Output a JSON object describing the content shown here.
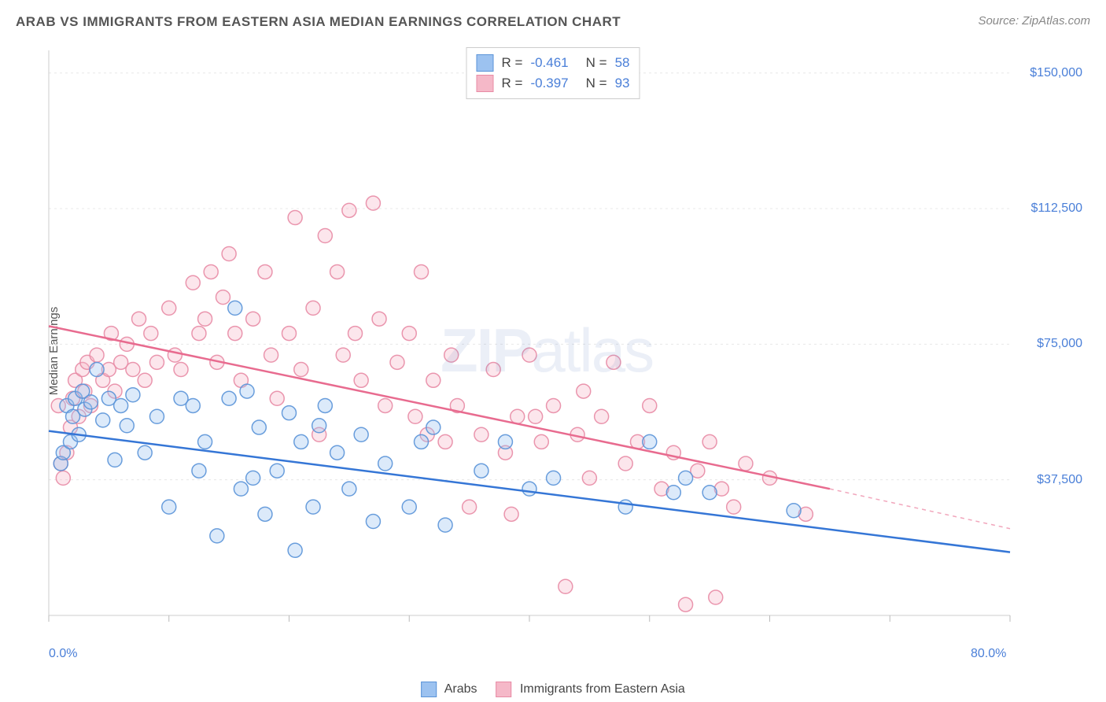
{
  "header": {
    "title": "ARAB VS IMMIGRANTS FROM EASTERN ASIA MEDIAN EARNINGS CORRELATION CHART",
    "source": "Source: ZipAtlas.com"
  },
  "watermark": {
    "bold": "ZIP",
    "light": "atlas"
  },
  "chart": {
    "type": "scatter",
    "y_axis_label": "Median Earnings",
    "xlim": [
      0,
      80
    ],
    "ylim": [
      0,
      156250
    ],
    "x_ticks_visible": [
      0,
      10,
      20,
      30,
      40,
      50,
      60,
      70,
      80
    ],
    "x_tick_labels": {
      "0": "0.0%",
      "80": "80.0%"
    },
    "y_ticks": [
      37500,
      75000,
      112500,
      150000
    ],
    "y_tick_labels": [
      "$37,500",
      "$75,000",
      "$112,500",
      "$150,000"
    ],
    "grid_color": "#e8e8e8",
    "axis_color": "#cccccc",
    "tick_color": "#bbbbbb",
    "background_color": "#ffffff",
    "label_color": "#4a7fd8",
    "marker_radius": 9,
    "marker_opacity_fill": 0.35,
    "marker_opacity_stroke": 0.9,
    "series": [
      {
        "name": "Arabs",
        "color_fill": "#9cc2f0",
        "color_stroke": "#5a93d8",
        "trend_color": "#3576d6",
        "R": "-0.461",
        "N": "58",
        "trend": {
          "x1": 0,
          "y1": 51000,
          "x2": 80,
          "y2": 17500,
          "dash_from_x": 80
        },
        "points": [
          [
            1.0,
            42000
          ],
          [
            1.2,
            45000
          ],
          [
            1.5,
            58000
          ],
          [
            1.8,
            48000
          ],
          [
            2.0,
            55000
          ],
          [
            2.2,
            60000
          ],
          [
            2.5,
            50000
          ],
          [
            2.8,
            62000
          ],
          [
            3.0,
            57000
          ],
          [
            3.5,
            59000
          ],
          [
            4.0,
            68000
          ],
          [
            4.5,
            54000
          ],
          [
            5.0,
            60000
          ],
          [
            5.5,
            43000
          ],
          [
            6.0,
            58000
          ],
          [
            6.5,
            52500
          ],
          [
            7.0,
            61000
          ],
          [
            8.0,
            45000
          ],
          [
            9.0,
            55000
          ],
          [
            10.0,
            30000
          ],
          [
            11.0,
            60000
          ],
          [
            12.0,
            58000
          ],
          [
            12.5,
            40000
          ],
          [
            13.0,
            48000
          ],
          [
            14.0,
            22000
          ],
          [
            15.0,
            60000
          ],
          [
            15.5,
            85000
          ],
          [
            16.0,
            35000
          ],
          [
            16.5,
            62000
          ],
          [
            17.0,
            38000
          ],
          [
            17.5,
            52000
          ],
          [
            18.0,
            28000
          ],
          [
            19.0,
            40000
          ],
          [
            20.0,
            56000
          ],
          [
            20.5,
            18000
          ],
          [
            21.0,
            48000
          ],
          [
            22.0,
            30000
          ],
          [
            22.5,
            52500
          ],
          [
            23.0,
            58000
          ],
          [
            24.0,
            45000
          ],
          [
            25.0,
            35000
          ],
          [
            26.0,
            50000
          ],
          [
            27.0,
            26000
          ],
          [
            28.0,
            42000
          ],
          [
            30.0,
            30000
          ],
          [
            31.0,
            48000
          ],
          [
            32.0,
            52000
          ],
          [
            33.0,
            25000
          ],
          [
            36.0,
            40000
          ],
          [
            38.0,
            48000
          ],
          [
            40.0,
            35000
          ],
          [
            42.0,
            38000
          ],
          [
            48.0,
            30000
          ],
          [
            50.0,
            48000
          ],
          [
            52.0,
            34000
          ],
          [
            53.0,
            38000
          ],
          [
            55.0,
            34000
          ],
          [
            62.0,
            29000
          ]
        ]
      },
      {
        "name": "Immigrants from Eastern Asia",
        "color_fill": "#f5b8c8",
        "color_stroke": "#e88ba5",
        "trend_color": "#e86b8f",
        "R": "-0.397",
        "N": "93",
        "trend": {
          "x1": 0,
          "y1": 80000,
          "x2": 65,
          "y2": 35000,
          "dash_from_x": 65,
          "dash_to_x": 80,
          "dash_to_y": 24000
        },
        "points": [
          [
            0.8,
            58000
          ],
          [
            1.0,
            42000
          ],
          [
            1.2,
            38000
          ],
          [
            1.5,
            45000
          ],
          [
            1.8,
            52000
          ],
          [
            2.0,
            60000
          ],
          [
            2.2,
            65000
          ],
          [
            2.5,
            55000
          ],
          [
            2.8,
            68000
          ],
          [
            3.0,
            62000
          ],
          [
            3.2,
            70000
          ],
          [
            3.5,
            58000
          ],
          [
            4.0,
            72000
          ],
          [
            4.5,
            65000
          ],
          [
            5.0,
            68000
          ],
          [
            5.2,
            78000
          ],
          [
            5.5,
            62000
          ],
          [
            6.0,
            70000
          ],
          [
            6.5,
            75000
          ],
          [
            7.0,
            68000
          ],
          [
            7.5,
            82000
          ],
          [
            8.0,
            65000
          ],
          [
            8.5,
            78000
          ],
          [
            9.0,
            70000
          ],
          [
            10.0,
            85000
          ],
          [
            10.5,
            72000
          ],
          [
            11.0,
            68000
          ],
          [
            12.0,
            92000
          ],
          [
            12.5,
            78000
          ],
          [
            13.0,
            82000
          ],
          [
            13.5,
            95000
          ],
          [
            14.0,
            70000
          ],
          [
            14.5,
            88000
          ],
          [
            15.0,
            100000
          ],
          [
            15.5,
            78000
          ],
          [
            16.0,
            65000
          ],
          [
            17.0,
            82000
          ],
          [
            18.0,
            95000
          ],
          [
            18.5,
            72000
          ],
          [
            19.0,
            60000
          ],
          [
            20.0,
            78000
          ],
          [
            20.5,
            110000
          ],
          [
            21.0,
            68000
          ],
          [
            22.0,
            85000
          ],
          [
            22.5,
            50000
          ],
          [
            23.0,
            105000
          ],
          [
            24.0,
            95000
          ],
          [
            24.5,
            72000
          ],
          [
            25.0,
            112000
          ],
          [
            25.5,
            78000
          ],
          [
            26.0,
            65000
          ],
          [
            27.0,
            114000
          ],
          [
            27.5,
            82000
          ],
          [
            28.0,
            58000
          ],
          [
            29.0,
            70000
          ],
          [
            30.0,
            78000
          ],
          [
            30.5,
            55000
          ],
          [
            31.0,
            95000
          ],
          [
            32.0,
            65000
          ],
          [
            33.0,
            48000
          ],
          [
            33.5,
            72000
          ],
          [
            34.0,
            58000
          ],
          [
            35.0,
            30000
          ],
          [
            36.0,
            50000
          ],
          [
            37.0,
            68000
          ],
          [
            38.0,
            45000
          ],
          [
            39.0,
            55000
          ],
          [
            40.0,
            72000
          ],
          [
            41.0,
            48000
          ],
          [
            42.0,
            58000
          ],
          [
            43.0,
            8000
          ],
          [
            44.0,
            50000
          ],
          [
            45.0,
            38000
          ],
          [
            46.0,
            55000
          ],
          [
            47.0,
            70000
          ],
          [
            48.0,
            42000
          ],
          [
            49.0,
            48000
          ],
          [
            50.0,
            58000
          ],
          [
            51.0,
            35000
          ],
          [
            52.0,
            45000
          ],
          [
            53.0,
            3000
          ],
          [
            54.0,
            40000
          ],
          [
            55.0,
            48000
          ],
          [
            56.0,
            35000
          ],
          [
            57.0,
            30000
          ],
          [
            58.0,
            42000
          ],
          [
            60.0,
            38000
          ],
          [
            63.0,
            28000
          ],
          [
            55.5,
            5000
          ],
          [
            38.5,
            28000
          ],
          [
            40.5,
            55000
          ],
          [
            44.5,
            62000
          ],
          [
            31.5,
            50000
          ]
        ]
      }
    ]
  },
  "bottom_legend": {
    "items": [
      {
        "label": "Arabs",
        "fill": "#9cc2f0",
        "stroke": "#5a93d8"
      },
      {
        "label": "Immigrants from Eastern Asia",
        "fill": "#f5b8c8",
        "stroke": "#e88ba5"
      }
    ]
  }
}
